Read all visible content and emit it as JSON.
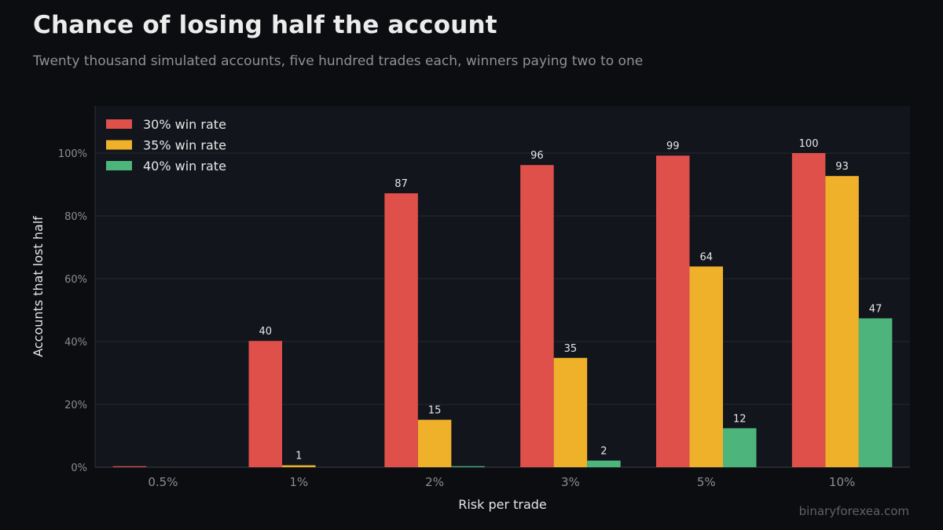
{
  "header": {
    "title": "Chance of losing half the account",
    "subtitle": "Twenty thousand simulated accounts, five hundred trades each, winners paying two to one"
  },
  "watermark": "binaryforexea.com",
  "colors": {
    "background": "#0c0d10",
    "plot_background": "#12151c",
    "grid": "#262a31",
    "series_30": "#e0504a",
    "series_35": "#f0b12a",
    "series_40": "#4db57c"
  },
  "chart_data": {
    "type": "bar",
    "xlabel": "Risk per trade",
    "ylabel": "Accounts that lost half",
    "categories": [
      "0.5%",
      "1%",
      "2%",
      "3%",
      "5%",
      "10%"
    ],
    "ylim": [
      0,
      115
    ],
    "yticks": [
      0,
      20,
      40,
      60,
      80,
      100
    ],
    "ytick_labels": [
      "0%",
      "20%",
      "40%",
      "60%",
      "80%",
      "100%"
    ],
    "grid": true,
    "legend_position": "top-left",
    "series": [
      {
        "name": "30% win rate",
        "color": "#e0504a",
        "values": [
          0.3,
          40.2,
          87.2,
          96.2,
          99.2,
          100
        ],
        "labels": [
          "",
          "40",
          "87",
          "96",
          "99",
          "100"
        ]
      },
      {
        "name": "35% win rate",
        "color": "#f0b12a",
        "values": [
          0,
          0.6,
          15.1,
          34.8,
          63.9,
          92.7
        ],
        "labels": [
          "",
          "1",
          "15",
          "35",
          "64",
          "93"
        ]
      },
      {
        "name": "40% win rate",
        "color": "#4db57c",
        "values": [
          0,
          0,
          0.3,
          2.1,
          12.4,
          47.4
        ],
        "labels": [
          "",
          "",
          "",
          "2",
          "12",
          "47"
        ]
      }
    ]
  }
}
